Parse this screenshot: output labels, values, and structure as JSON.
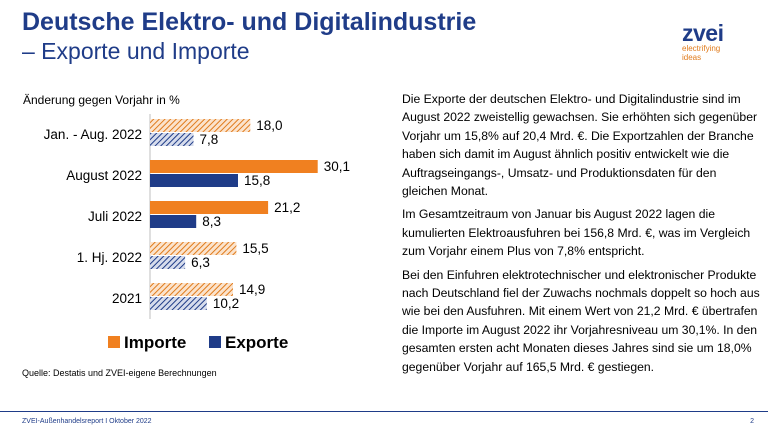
{
  "header": {
    "title": "Deutsche Elektro- und Digitalindustrie",
    "subtitle": "– Exporte und Importe"
  },
  "logo": {
    "name": "zvei",
    "tagline_1": "electrifying",
    "tagline_2": "ideas"
  },
  "chart_data": {
    "type": "bar",
    "orientation": "horizontal",
    "subtitle": "Änderung gegen Vorjahr in %",
    "categories": [
      "Jan. - Aug. 2022",
      "August 2022",
      "Juli 2022",
      "1. Hj. 2022",
      "2021"
    ],
    "series": [
      {
        "name": "Importe",
        "values": [
          18.0,
          30.1,
          21.2,
          15.5,
          14.9
        ],
        "labels": [
          "18,0",
          "30,1",
          "21,2",
          "15,5",
          "14,9"
        ],
        "color": "#f08020",
        "hatched": [
          true,
          false,
          false,
          true,
          true
        ]
      },
      {
        "name": "Exporte",
        "values": [
          7.8,
          15.8,
          8.3,
          6.3,
          10.2
        ],
        "labels": [
          "7,8",
          "15,8",
          "8,3",
          "6,3",
          "10,2"
        ],
        "color": "#1f3c88",
        "hatched": [
          true,
          false,
          false,
          true,
          true
        ]
      }
    ],
    "xlim": [
      0,
      35
    ],
    "legend": "bottom"
  },
  "source": "Quelle: Destatis und ZVEI-eigene Berechnungen",
  "body_text": [
    "Die Exporte der deutschen Elektro- und Digitalindustrie sind im August 2022 zweistellig gewachsen. Sie erhöhten sich gegenüber Vorjahr um 15,8% auf 20,4 Mrd. €. Die Exportzahlen der Branche haben sich damit im August ähnlich positiv entwickelt wie die Auftragseingangs-, Umsatz- und Produktionsdaten für den gleichen Monat.",
    "Im Gesamtzeitraum von Januar bis August 2022 lagen die kumulierten Elektroausfuhren bei 156,8 Mrd. €, was im Vergleich zum Vorjahr einem Plus von 7,8% entspricht.",
    "Bei den Einfuhren elektrotechnischer und elektronischer Produkte nach Deutschland fiel der Zuwachs nochmals doppelt so hoch aus wie bei den Ausfuhren. Mit einem Wert von 21,2 Mrd. € übertrafen die Importe im August 2022 ihr Vorjahresniveau um 30,1%. In den gesamten ersten acht Monaten dieses Jahres sind sie um 18,0% gegenüber Vorjahr auf 165,5 Mrd. € gestiegen."
  ],
  "footer": {
    "left": "ZVEI-Außenhandelsreport I Oktober 2022",
    "right": "2"
  },
  "colors": {
    "brand_blue": "#1f3c88",
    "accent_orange": "#f08020"
  }
}
